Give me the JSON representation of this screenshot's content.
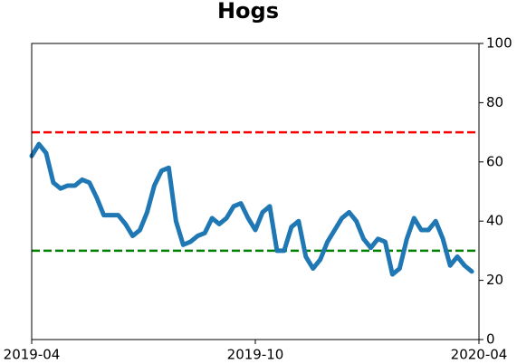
{
  "chart_data": {
    "type": "line",
    "title": "Hogs",
    "values": [
      62,
      66,
      63,
      53,
      51,
      52,
      52,
      54,
      53,
      48,
      42,
      42,
      42,
      39,
      35,
      37,
      43,
      52,
      57,
      58,
      40,
      32,
      33,
      35,
      36,
      41,
      39,
      41,
      45,
      46,
      41,
      37,
      43,
      45,
      30,
      30,
      38,
      40,
      28,
      24,
      27,
      33,
      37,
      41,
      43,
      40,
      34,
      31,
      34,
      33,
      22,
      24,
      34,
      41,
      37,
      37,
      40,
      34,
      25,
      28,
      25,
      23
    ],
    "color": "#1f77b4",
    "xlim": [
      0,
      62
    ],
    "xticks": [
      {
        "value": 0,
        "label": "2019-04"
      },
      {
        "value": 31,
        "label": "2019-10"
      },
      {
        "value": 62,
        "label": "2020-04"
      }
    ],
    "ylim": [
      0,
      100
    ],
    "yticks": [
      0,
      20,
      40,
      60,
      80,
      100
    ],
    "hlines": [
      {
        "value": 70,
        "color": "#ff0000"
      },
      {
        "value": 30,
        "color": "#008000"
      }
    ],
    "grid": false
  }
}
